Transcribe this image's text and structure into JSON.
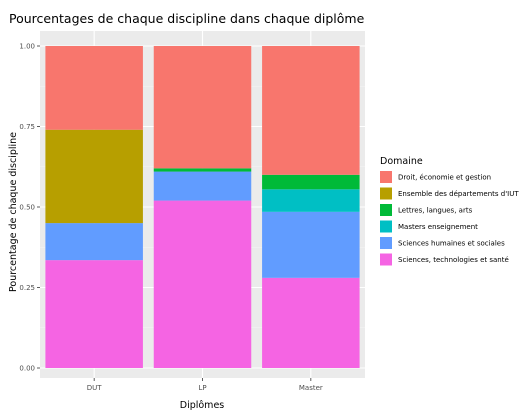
{
  "chart_data": {
    "type": "bar",
    "stacked": true,
    "title": "Pourcentages de chaque discipline dans chaque diplôme",
    "xlabel": "Diplômes",
    "ylabel": "Pourcentage de chaque discipline",
    "ylim": [
      0,
      1
    ],
    "yticks": [
      0,
      0.25,
      0.5,
      0.75,
      1
    ],
    "ytick_labels": [
      "0.00",
      "0.25",
      "0.50",
      "0.75",
      "1.00"
    ],
    "grid": true,
    "legend_position": "right",
    "legend_title": "Domaine",
    "categories": [
      "DUT",
      "LP",
      "Master"
    ],
    "series": [
      {
        "name": "Droit, économie et gestion",
        "color": "#F8766D",
        "values": [
          0.26,
          0.38,
          0.4
        ]
      },
      {
        "name": "Ensemble des départements d'IUT",
        "color": "#B79F00",
        "values": [
          0.29,
          0.0,
          0.0
        ]
      },
      {
        "name": "Lettres, langues, arts",
        "color": "#00BA38",
        "values": [
          0.0,
          0.01,
          0.045
        ]
      },
      {
        "name": "Masters enseignement",
        "color": "#00BFC4",
        "values": [
          0.0,
          0.0,
          0.07
        ]
      },
      {
        "name": "Sciences humaines et sociales",
        "color": "#619CFF",
        "values": [
          0.115,
          0.09,
          0.205
        ]
      },
      {
        "name": "Sciences, technologies et santé",
        "color": "#F564E3",
        "values": [
          0.335,
          0.52,
          0.28
        ]
      }
    ]
  }
}
